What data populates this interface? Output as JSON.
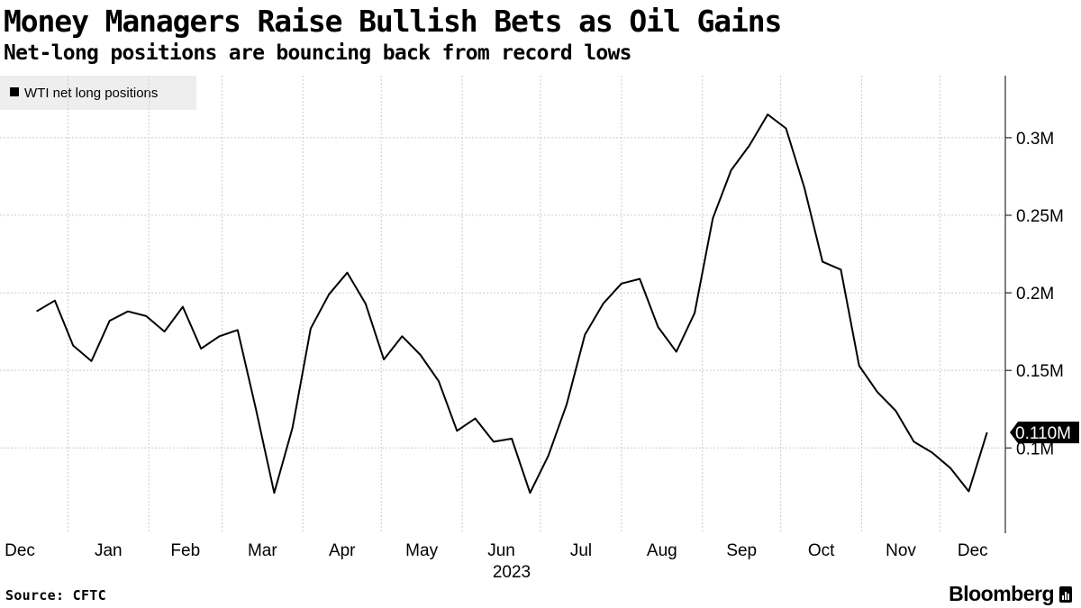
{
  "title": "Money Managers Raise Bullish Bets as Oil Gains",
  "subtitle": "Net-long positions are bouncing back from record lows",
  "source": "Source: CFTC",
  "brand": "Bloomberg",
  "brand_icon": "bloomberg-bars-icon",
  "colors": {
    "line": "#000000",
    "grid": "#cccccc",
    "legend_bg": "#eeeeee",
    "label_bg": "#000000",
    "label_text": "#ffffff"
  },
  "chart_data": {
    "type": "line",
    "title": "Money Managers Raise Bullish Bets as Oil Gains",
    "subtitle": "Net-long positions are bouncing back from record lows",
    "series": [
      {
        "name": "WTI net long positions",
        "x": [
          "2022-12-20",
          "2022-12-27",
          "2023-01-03",
          "2023-01-10",
          "2023-01-17",
          "2023-01-24",
          "2023-01-31",
          "2023-02-07",
          "2023-02-14",
          "2023-02-21",
          "2023-02-28",
          "2023-03-07",
          "2023-03-14",
          "2023-03-21",
          "2023-03-28",
          "2023-04-04",
          "2023-04-11",
          "2023-04-18",
          "2023-04-25",
          "2023-05-02",
          "2023-05-09",
          "2023-05-16",
          "2023-05-23",
          "2023-05-30",
          "2023-06-06",
          "2023-06-13",
          "2023-06-20",
          "2023-06-27",
          "2023-07-04",
          "2023-07-11",
          "2023-07-18",
          "2023-07-25",
          "2023-08-01",
          "2023-08-08",
          "2023-08-15",
          "2023-08-22",
          "2023-08-29",
          "2023-09-05",
          "2023-09-12",
          "2023-09-19",
          "2023-09-26",
          "2023-10-03",
          "2023-10-10",
          "2023-10-17",
          "2023-10-24",
          "2023-10-31",
          "2023-11-07",
          "2023-11-14",
          "2023-11-21",
          "2023-11-28",
          "2023-12-05",
          "2023-12-12"
        ],
        "values": [
          0.188,
          0.195,
          0.166,
          0.156,
          0.182,
          0.188,
          0.185,
          0.175,
          0.191,
          0.164,
          0.172,
          0.176,
          0.125,
          0.071,
          0.113,
          0.177,
          0.199,
          0.213,
          0.193,
          0.157,
          0.172,
          0.16,
          0.143,
          0.111,
          0.119,
          0.104,
          0.106,
          0.071,
          0.095,
          0.128,
          0.173,
          0.193,
          0.206,
          0.209,
          0.178,
          0.162,
          0.187,
          0.248,
          0.279,
          0.295,
          0.315,
          0.306,
          0.268,
          0.22,
          0.215,
          0.153,
          0.136,
          0.124,
          0.104,
          0.097,
          0.087,
          0.072
        ]
      }
    ],
    "last_value_label": "0.110M",
    "last_value": 0.11,
    "last_date": "2023-12-19",
    "ylim": [
      0.045,
      0.34
    ],
    "y_ticks": [
      0.1,
      0.15,
      0.2,
      0.25,
      0.3
    ],
    "y_tick_labels": [
      "0.1M",
      "0.15M",
      "0.2M",
      "0.25M",
      "0.3M"
    ],
    "x_ticks": [
      "Dec",
      "Jan",
      "Feb",
      "Mar",
      "Apr",
      "May",
      "Jun",
      "Jul",
      "Aug",
      "Sep",
      "Oct",
      "Nov",
      "Dec"
    ],
    "x_year_label": "2023",
    "y_axis_position": "right",
    "grid": true,
    "legend": "top-left"
  }
}
